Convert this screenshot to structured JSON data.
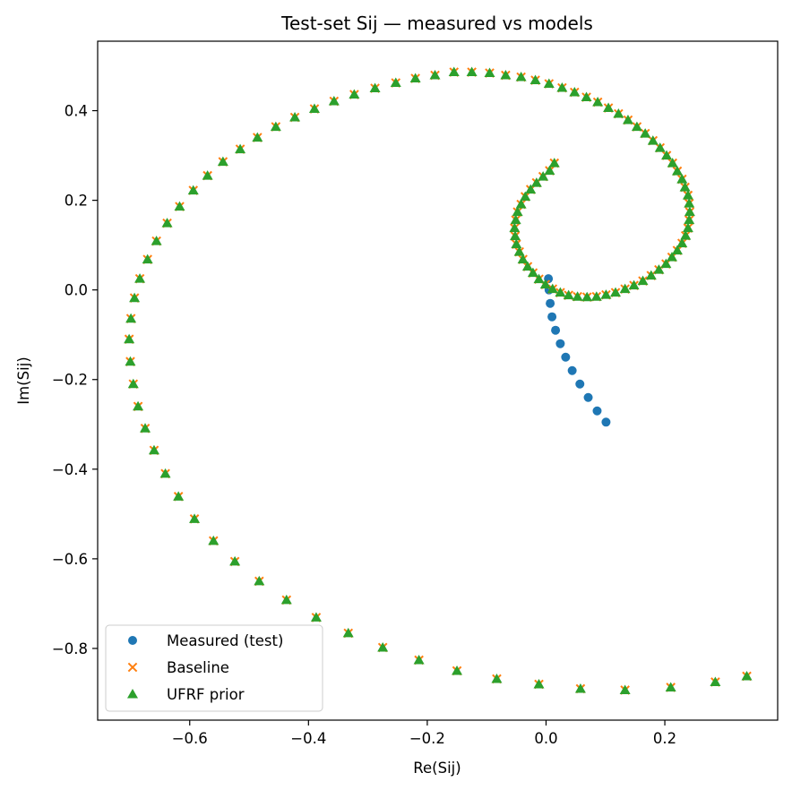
{
  "chart_data": {
    "type": "scatter",
    "title": "Test-set Sij — measured vs models",
    "xlabel": "Re(Sij)",
    "ylabel": "Im(Sij)",
    "xlim": [
      -0.755,
      0.39
    ],
    "ylim": [
      -0.96,
      0.555
    ],
    "xticks": [
      -0.6,
      -0.4,
      -0.2,
      0.0,
      0.2
    ],
    "xtick_labels": [
      "−0.6",
      "−0.4",
      "−0.2",
      "0.0",
      "0.2"
    ],
    "yticks": [
      0.4,
      0.2,
      0.0,
      -0.2,
      -0.4,
      -0.6,
      -0.8
    ],
    "ytick_labels": [
      "0.4",
      "0.2",
      "0.0",
      "−0.2",
      "−0.4",
      "−0.6",
      "−0.8"
    ],
    "grid": false,
    "legend_position": "lower-left",
    "series": [
      {
        "name": "Measured (test)",
        "marker": "circle",
        "color": "#1f77b4",
        "points": [
          [
            0.004,
            0.025
          ],
          [
            0.005,
            0.0
          ],
          [
            0.007,
            -0.03
          ],
          [
            0.01,
            -0.06
          ],
          [
            0.016,
            -0.09
          ],
          [
            0.024,
            -0.12
          ],
          [
            0.033,
            -0.15
          ],
          [
            0.044,
            -0.18
          ],
          [
            0.057,
            -0.21
          ],
          [
            0.071,
            -0.24
          ],
          [
            0.086,
            -0.27
          ],
          [
            0.101,
            -0.295
          ]
        ]
      },
      {
        "name": "Baseline",
        "marker": "x",
        "color": "#ff7f0e",
        "points": [
          [
            0.338,
            -0.862
          ],
          [
            0.285,
            -0.875
          ],
          [
            0.21,
            -0.887
          ],
          [
            0.133,
            -0.893
          ],
          [
            0.058,
            -0.89
          ],
          [
            -0.012,
            -0.88
          ],
          [
            -0.083,
            -0.868
          ],
          [
            -0.15,
            -0.85
          ],
          [
            -0.214,
            -0.826
          ],
          [
            -0.275,
            -0.798
          ],
          [
            -0.333,
            -0.766
          ],
          [
            -0.387,
            -0.731
          ],
          [
            -0.437,
            -0.692
          ],
          [
            -0.483,
            -0.65
          ],
          [
            -0.524,
            -0.606
          ],
          [
            -0.56,
            -0.56
          ],
          [
            -0.592,
            -0.511
          ],
          [
            -0.619,
            -0.461
          ],
          [
            -0.641,
            -0.41
          ],
          [
            -0.66,
            -0.358
          ],
          [
            -0.675,
            -0.309
          ],
          [
            -0.687,
            -0.26
          ],
          [
            -0.695,
            -0.21
          ],
          [
            -0.7,
            -0.16
          ],
          [
            -0.702,
            -0.11
          ],
          [
            -0.699,
            -0.064
          ],
          [
            -0.693,
            -0.018
          ],
          [
            -0.684,
            0.025
          ],
          [
            -0.671,
            0.068
          ],
          [
            -0.656,
            0.109
          ],
          [
            -0.638,
            0.149
          ],
          [
            -0.617,
            0.186
          ],
          [
            -0.594,
            0.222
          ],
          [
            -0.57,
            0.255
          ],
          [
            -0.544,
            0.286
          ],
          [
            -0.515,
            0.314
          ],
          [
            -0.486,
            0.34
          ],
          [
            -0.455,
            0.364
          ],
          [
            -0.423,
            0.385
          ],
          [
            -0.39,
            0.404
          ],
          [
            -0.357,
            0.421
          ],
          [
            -0.323,
            0.436
          ],
          [
            -0.288,
            0.45
          ],
          [
            -0.253,
            0.462
          ],
          [
            -0.22,
            0.472
          ],
          [
            -0.187,
            0.479
          ],
          [
            -0.155,
            0.486
          ],
          [
            -0.125,
            0.486
          ],
          [
            -0.095,
            0.484
          ],
          [
            -0.068,
            0.479
          ],
          [
            -0.042,
            0.475
          ],
          [
            -0.018,
            0.468
          ],
          [
            0.005,
            0.46
          ],
          [
            0.027,
            0.451
          ],
          [
            0.048,
            0.441
          ],
          [
            0.068,
            0.43
          ],
          [
            0.087,
            0.419
          ],
          [
            0.105,
            0.406
          ],
          [
            0.122,
            0.393
          ],
          [
            0.138,
            0.379
          ],
          [
            0.153,
            0.364
          ],
          [
            0.167,
            0.349
          ],
          [
            0.18,
            0.333
          ],
          [
            0.192,
            0.317
          ],
          [
            0.203,
            0.3
          ],
          [
            0.213,
            0.283
          ],
          [
            0.221,
            0.265
          ],
          [
            0.229,
            0.247
          ],
          [
            0.234,
            0.229
          ],
          [
            0.239,
            0.211
          ],
          [
            0.241,
            0.193
          ],
          [
            0.242,
            0.174
          ],
          [
            0.241,
            0.156
          ],
          [
            0.239,
            0.138
          ],
          [
            0.235,
            0.121
          ],
          [
            0.229,
            0.104
          ],
          [
            0.221,
            0.088
          ],
          [
            0.212,
            0.073
          ],
          [
            0.202,
            0.058
          ],
          [
            0.19,
            0.045
          ],
          [
            0.177,
            0.032
          ],
          [
            0.163,
            0.02
          ],
          [
            0.148,
            0.01
          ],
          [
            0.133,
            0.002
          ],
          [
            0.117,
            -0.006
          ],
          [
            0.101,
            -0.011
          ],
          [
            0.085,
            -0.015
          ],
          [
            0.069,
            -0.016
          ],
          [
            0.053,
            -0.015
          ],
          [
            0.038,
            -0.012
          ],
          [
            0.024,
            -0.006
          ],
          [
            0.011,
            0.002
          ],
          [
            -0.001,
            0.012
          ],
          [
            -0.012,
            0.024
          ],
          [
            -0.022,
            0.038
          ],
          [
            -0.031,
            0.052
          ],
          [
            -0.039,
            0.068
          ],
          [
            -0.045,
            0.085
          ],
          [
            -0.05,
            0.102
          ],
          [
            -0.052,
            0.12
          ],
          [
            -0.053,
            0.138
          ],
          [
            -0.051,
            0.156
          ],
          [
            -0.048,
            0.174
          ],
          [
            -0.042,
            0.191
          ],
          [
            -0.035,
            0.208
          ],
          [
            -0.026,
            0.224
          ],
          [
            -0.016,
            0.239
          ],
          [
            -0.005,
            0.253
          ],
          [
            0.006,
            0.266
          ],
          [
            0.014,
            0.283
          ]
        ]
      },
      {
        "name": "UFRF prior",
        "marker": "triangle",
        "color": "#2ca02c",
        "points": [
          [
            0.338,
            -0.862
          ],
          [
            0.285,
            -0.875
          ],
          [
            0.21,
            -0.887
          ],
          [
            0.133,
            -0.893
          ],
          [
            0.058,
            -0.89
          ],
          [
            -0.012,
            -0.88
          ],
          [
            -0.083,
            -0.868
          ],
          [
            -0.15,
            -0.85
          ],
          [
            -0.214,
            -0.826
          ],
          [
            -0.275,
            -0.798
          ],
          [
            -0.333,
            -0.766
          ],
          [
            -0.387,
            -0.731
          ],
          [
            -0.437,
            -0.692
          ],
          [
            -0.483,
            -0.65
          ],
          [
            -0.524,
            -0.606
          ],
          [
            -0.56,
            -0.56
          ],
          [
            -0.592,
            -0.511
          ],
          [
            -0.619,
            -0.461
          ],
          [
            -0.641,
            -0.41
          ],
          [
            -0.66,
            -0.358
          ],
          [
            -0.675,
            -0.309
          ],
          [
            -0.687,
            -0.26
          ],
          [
            -0.695,
            -0.21
          ],
          [
            -0.7,
            -0.16
          ],
          [
            -0.702,
            -0.11
          ],
          [
            -0.699,
            -0.064
          ],
          [
            -0.693,
            -0.018
          ],
          [
            -0.684,
            0.025
          ],
          [
            -0.671,
            0.068
          ],
          [
            -0.656,
            0.109
          ],
          [
            -0.638,
            0.149
          ],
          [
            -0.617,
            0.186
          ],
          [
            -0.594,
            0.222
          ],
          [
            -0.57,
            0.255
          ],
          [
            -0.544,
            0.286
          ],
          [
            -0.515,
            0.314
          ],
          [
            -0.486,
            0.34
          ],
          [
            -0.455,
            0.364
          ],
          [
            -0.423,
            0.385
          ],
          [
            -0.39,
            0.404
          ],
          [
            -0.357,
            0.421
          ],
          [
            -0.323,
            0.436
          ],
          [
            -0.288,
            0.45
          ],
          [
            -0.253,
            0.462
          ],
          [
            -0.22,
            0.472
          ],
          [
            -0.187,
            0.479
          ],
          [
            -0.155,
            0.486
          ],
          [
            -0.125,
            0.486
          ],
          [
            -0.095,
            0.484
          ],
          [
            -0.068,
            0.479
          ],
          [
            -0.042,
            0.475
          ],
          [
            -0.018,
            0.468
          ],
          [
            0.005,
            0.46
          ],
          [
            0.027,
            0.451
          ],
          [
            0.048,
            0.441
          ],
          [
            0.068,
            0.43
          ],
          [
            0.087,
            0.419
          ],
          [
            0.105,
            0.406
          ],
          [
            0.122,
            0.393
          ],
          [
            0.138,
            0.379
          ],
          [
            0.153,
            0.364
          ],
          [
            0.167,
            0.349
          ],
          [
            0.18,
            0.333
          ],
          [
            0.192,
            0.317
          ],
          [
            0.203,
            0.3
          ],
          [
            0.213,
            0.283
          ],
          [
            0.221,
            0.265
          ],
          [
            0.229,
            0.247
          ],
          [
            0.234,
            0.229
          ],
          [
            0.239,
            0.211
          ],
          [
            0.241,
            0.193
          ],
          [
            0.242,
            0.174
          ],
          [
            0.241,
            0.156
          ],
          [
            0.239,
            0.138
          ],
          [
            0.235,
            0.121
          ],
          [
            0.229,
            0.104
          ],
          [
            0.221,
            0.088
          ],
          [
            0.212,
            0.073
          ],
          [
            0.202,
            0.058
          ],
          [
            0.19,
            0.045
          ],
          [
            0.177,
            0.032
          ],
          [
            0.163,
            0.02
          ],
          [
            0.148,
            0.01
          ],
          [
            0.133,
            0.002
          ],
          [
            0.117,
            -0.006
          ],
          [
            0.101,
            -0.011
          ],
          [
            0.085,
            -0.015
          ],
          [
            0.069,
            -0.016
          ],
          [
            0.053,
            -0.015
          ],
          [
            0.038,
            -0.012
          ],
          [
            0.024,
            -0.006
          ],
          [
            0.011,
            0.002
          ],
          [
            -0.001,
            0.012
          ],
          [
            -0.012,
            0.024
          ],
          [
            -0.022,
            0.038
          ],
          [
            -0.031,
            0.052
          ],
          [
            -0.039,
            0.068
          ],
          [
            -0.045,
            0.085
          ],
          [
            -0.05,
            0.102
          ],
          [
            -0.052,
            0.12
          ],
          [
            -0.053,
            0.138
          ],
          [
            -0.051,
            0.156
          ],
          [
            -0.048,
            0.174
          ],
          [
            -0.042,
            0.191
          ],
          [
            -0.035,
            0.208
          ],
          [
            -0.026,
            0.224
          ],
          [
            -0.016,
            0.239
          ],
          [
            -0.005,
            0.253
          ],
          [
            0.006,
            0.266
          ],
          [
            0.014,
            0.283
          ]
        ]
      }
    ]
  }
}
